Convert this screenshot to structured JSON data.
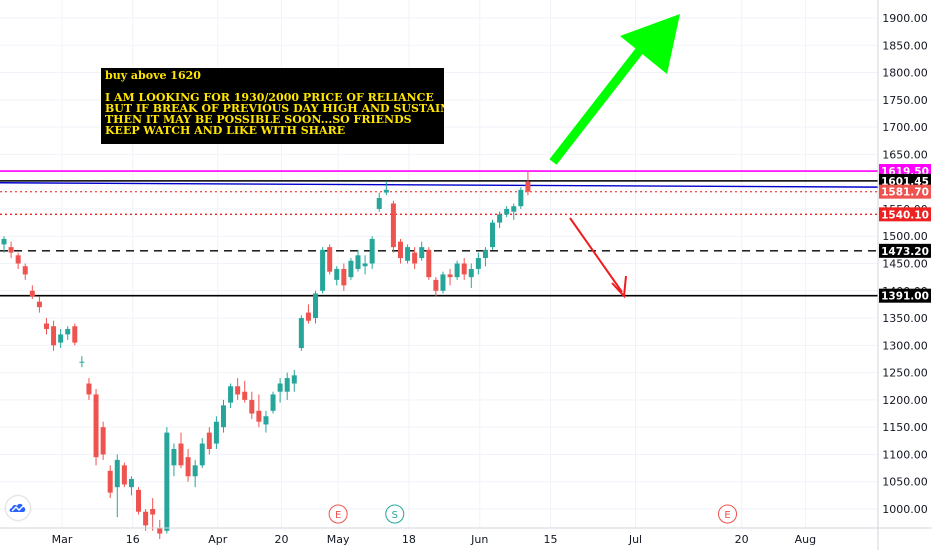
{
  "chart_data": {
    "type": "candlestick",
    "symbol_note": "RELIANCE",
    "y_range": [
      970,
      1935
    ],
    "y_ticks": [
      1000,
      1050,
      1100,
      1150,
      1200,
      1250,
      1300,
      1350,
      1400,
      1450,
      1500,
      1550,
      1600,
      1650,
      1700,
      1750,
      1800,
      1850,
      1900
    ],
    "y_tick_labels": [
      "1000.00",
      "1050.00",
      "1100.00",
      "1150.00",
      "1200.00",
      "1250.00",
      "1300.00",
      "1350.00",
      "1400.00",
      "1450.00",
      "1500.00",
      "1550.00",
      "1600.00",
      "1650.00",
      "1700.00",
      "1750.00",
      "1800.00",
      "1850.00",
      "1900.00"
    ],
    "x_labels": [
      {
        "label": "Mar",
        "day": 7
      },
      {
        "label": "16",
        "day": 17
      },
      {
        "label": "Apr",
        "day": 29
      },
      {
        "label": "20",
        "day": 38
      },
      {
        "label": "May",
        "day": 46
      },
      {
        "label": "18",
        "day": 56
      },
      {
        "label": "Jun",
        "day": 66
      },
      {
        "label": "15",
        "day": 76
      },
      {
        "label": "Jul",
        "day": 88
      },
      {
        "label": "20",
        "day": 103
      },
      {
        "label": "Aug",
        "day": 112
      }
    ],
    "x_range": [
      0,
      120
    ],
    "grid": true,
    "candles": [
      {
        "o": 1485,
        "h": 1500,
        "l": 1470,
        "c": 1495
      },
      {
        "o": 1480,
        "h": 1490,
        "l": 1460,
        "c": 1470
      },
      {
        "o": 1465,
        "h": 1470,
        "l": 1440,
        "c": 1450
      },
      {
        "o": 1445,
        "h": 1450,
        "l": 1420,
        "c": 1430
      },
      {
        "o": 1400,
        "h": 1410,
        "l": 1385,
        "c": 1390
      },
      {
        "o": 1380,
        "h": 1390,
        "l": 1360,
        "c": 1370
      },
      {
        "o": 1340,
        "h": 1350,
        "l": 1320,
        "c": 1330
      },
      {
        "o": 1335,
        "h": 1345,
        "l": 1290,
        "c": 1300
      },
      {
        "o": 1305,
        "h": 1330,
        "l": 1295,
        "c": 1320
      },
      {
        "o": 1320,
        "h": 1335,
        "l": 1310,
        "c": 1330
      },
      {
        "o": 1335,
        "h": 1340,
        "l": 1300,
        "c": 1305
      },
      {
        "o": 1270,
        "h": 1280,
        "l": 1260,
        "c": 1270
      },
      {
        "o": 1230,
        "h": 1240,
        "l": 1200,
        "c": 1210
      },
      {
        "o": 1210,
        "h": 1220,
        "l": 1080,
        "c": 1095
      },
      {
        "o": 1150,
        "h": 1160,
        "l": 1090,
        "c": 1100
      },
      {
        "o": 1070,
        "h": 1080,
        "l": 1020,
        "c": 1030
      },
      {
        "o": 1040,
        "h": 1100,
        "l": 985,
        "c": 1090
      },
      {
        "o": 1080,
        "h": 1085,
        "l": 1040,
        "c": 1045
      },
      {
        "o": 1040,
        "h": 1060,
        "l": 1025,
        "c": 1055
      },
      {
        "o": 1035,
        "h": 1040,
        "l": 990,
        "c": 995
      },
      {
        "o": 995,
        "h": 1000,
        "l": 960,
        "c": 970
      },
      {
        "o": 1000,
        "h": 1020,
        "l": 960,
        "c": 990
      },
      {
        "o": 965,
        "h": 980,
        "l": 945,
        "c": 955
      },
      {
        "o": 960,
        "h": 1150,
        "l": 955,
        "c": 1140
      },
      {
        "o": 1080,
        "h": 1120,
        "l": 1060,
        "c": 1110
      },
      {
        "o": 1120,
        "h": 1140,
        "l": 1075,
        "c": 1080
      },
      {
        "o": 1095,
        "h": 1110,
        "l": 1050,
        "c": 1060
      },
      {
        "o": 1060,
        "h": 1090,
        "l": 1040,
        "c": 1080
      },
      {
        "o": 1080,
        "h": 1130,
        "l": 1075,
        "c": 1120
      },
      {
        "o": 1140,
        "h": 1150,
        "l": 1100,
        "c": 1110
      },
      {
        "o": 1120,
        "h": 1170,
        "l": 1110,
        "c": 1160
      },
      {
        "o": 1150,
        "h": 1200,
        "l": 1140,
        "c": 1190
      },
      {
        "o": 1195,
        "h": 1230,
        "l": 1185,
        "c": 1225
      },
      {
        "o": 1225,
        "h": 1240,
        "l": 1200,
        "c": 1210
      },
      {
        "o": 1215,
        "h": 1235,
        "l": 1195,
        "c": 1200
      },
      {
        "o": 1200,
        "h": 1215,
        "l": 1165,
        "c": 1175
      },
      {
        "o": 1180,
        "h": 1210,
        "l": 1150,
        "c": 1160
      },
      {
        "o": 1155,
        "h": 1180,
        "l": 1140,
        "c": 1170
      },
      {
        "o": 1180,
        "h": 1215,
        "l": 1175,
        "c": 1210
      },
      {
        "o": 1215,
        "h": 1240,
        "l": 1195,
        "c": 1230
      },
      {
        "o": 1215,
        "h": 1250,
        "l": 1200,
        "c": 1240
      },
      {
        "o": 1230,
        "h": 1255,
        "l": 1215,
        "c": 1245
      },
      {
        "o": 1295,
        "h": 1355,
        "l": 1290,
        "c": 1350
      },
      {
        "o": 1360,
        "h": 1375,
        "l": 1340,
        "c": 1345
      },
      {
        "o": 1350,
        "h": 1400,
        "l": 1340,
        "c": 1395
      },
      {
        "o": 1400,
        "h": 1480,
        "l": 1395,
        "c": 1475
      },
      {
        "o": 1480,
        "h": 1485,
        "l": 1430,
        "c": 1435
      },
      {
        "o": 1420,
        "h": 1445,
        "l": 1410,
        "c": 1440
      },
      {
        "o": 1440,
        "h": 1450,
        "l": 1400,
        "c": 1410
      },
      {
        "o": 1425,
        "h": 1460,
        "l": 1420,
        "c": 1455
      },
      {
        "o": 1440,
        "h": 1475,
        "l": 1435,
        "c": 1465
      },
      {
        "o": 1445,
        "h": 1465,
        "l": 1430,
        "c": 1450
      },
      {
        "o": 1450,
        "h": 1500,
        "l": 1440,
        "c": 1495
      },
      {
        "o": 1550,
        "h": 1580,
        "l": 1545,
        "c": 1570
      },
      {
        "o": 1580,
        "h": 1601,
        "l": 1575,
        "c": 1585
      },
      {
        "o": 1560,
        "h": 1565,
        "l": 1470,
        "c": 1480
      },
      {
        "o": 1490,
        "h": 1495,
        "l": 1450,
        "c": 1460
      },
      {
        "o": 1455,
        "h": 1485,
        "l": 1450,
        "c": 1480
      },
      {
        "o": 1470,
        "h": 1480,
        "l": 1440,
        "c": 1450
      },
      {
        "o": 1460,
        "h": 1490,
        "l": 1455,
        "c": 1480
      },
      {
        "o": 1475,
        "h": 1480,
        "l": 1420,
        "c": 1425
      },
      {
        "o": 1420,
        "h": 1425,
        "l": 1390,
        "c": 1400
      },
      {
        "o": 1400,
        "h": 1435,
        "l": 1395,
        "c": 1430
      },
      {
        "o": 1430,
        "h": 1440,
        "l": 1410,
        "c": 1425
      },
      {
        "o": 1425,
        "h": 1455,
        "l": 1420,
        "c": 1450
      },
      {
        "o": 1450,
        "h": 1460,
        "l": 1420,
        "c": 1430
      },
      {
        "o": 1425,
        "h": 1450,
        "l": 1405,
        "c": 1440
      },
      {
        "o": 1440,
        "h": 1470,
        "l": 1430,
        "c": 1460
      },
      {
        "o": 1460,
        "h": 1480,
        "l": 1445,
        "c": 1475
      },
      {
        "o": 1480,
        "h": 1530,
        "l": 1475,
        "c": 1525
      },
      {
        "o": 1525,
        "h": 1545,
        "l": 1515,
        "c": 1540
      },
      {
        "o": 1540,
        "h": 1555,
        "l": 1535,
        "c": 1550
      },
      {
        "o": 1545,
        "h": 1560,
        "l": 1530,
        "c": 1555
      },
      {
        "o": 1555,
        "h": 1590,
        "l": 1550,
        "c": 1585
      },
      {
        "o": 1600,
        "h": 1619.5,
        "l": 1575,
        "c": 1581.7
      }
    ],
    "colors": {
      "up": "#26a69a",
      "down": "#ef5350",
      "magenta": "#ff00ff",
      "blue": "#0000cc",
      "red_dotted": "#ef2020",
      "green_arrow": "#00ff00",
      "red_arrow": "#ef1d1d"
    },
    "horizontal_lines": [
      {
        "price": 1619.5,
        "label": "1619.50",
        "style": "solid",
        "color": "#ff00ff",
        "label_bg": "#ff00ff"
      },
      {
        "price": 1601.45,
        "label": "1601.45",
        "style": "solid",
        "color": "#000000",
        "label_bg": "#000000"
      },
      {
        "price": 1581.7,
        "label": "1581.70",
        "style": "dotted",
        "color": "#ef5350",
        "label_bg": "#ef5350"
      },
      {
        "price": 1540.1,
        "label": "1540.10",
        "style": "dotted",
        "color": "#ef2020",
        "label_bg": "#ef2020"
      },
      {
        "price": 1473.2,
        "label": "1473.20",
        "style": "dashed",
        "color": "#000000",
        "label_bg": "#000000"
      },
      {
        "price": 1391.0,
        "label": "1391.00",
        "style": "solid",
        "color": "#000000",
        "label_bg": "#000000"
      }
    ],
    "blue_trendline": {
      "from_price": 1598,
      "to_price": 1590
    },
    "event_markers": [
      {
        "letter": "E",
        "day": 46,
        "color": "#ef5350"
      },
      {
        "letter": "S",
        "day": 54,
        "color": "#26a69a"
      },
      {
        "letter": "E",
        "day": 101,
        "color": "#ef5350"
      }
    ],
    "annotation": {
      "lines": [
        "buy above 1620",
        "",
        "I AM LOOKING FOR 1930/2000 PRICE OF RELIANCE",
        "BUT IF BREAK OF PREVIOUS DAY HIGH AND SUSTAIN",
        "THEN IT MAY BE POSSIBLE SOON...SO FRIENDS",
        "KEEP WATCH AND LIKE WITH SHARE"
      ]
    }
  }
}
